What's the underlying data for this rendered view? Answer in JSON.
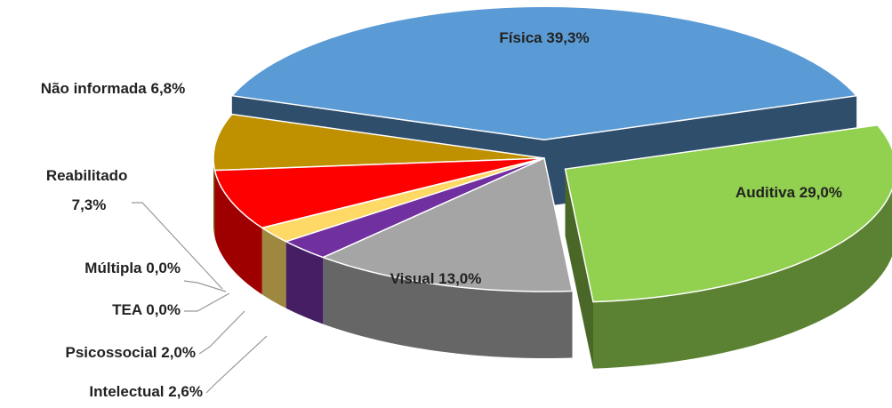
{
  "chart_data": {
    "type": "pie3d",
    "categories": [
      "Física",
      "Auditiva",
      "Visual",
      "Intelectual",
      "Psicossocial",
      "TEA",
      "Múltipla",
      "Reabilitado",
      "Não informada"
    ],
    "values": [
      39.3,
      29.0,
      13.0,
      2.6,
      2.0,
      0.0,
      0.0,
      7.3,
      6.8
    ],
    "value_labels": [
      "39,3%",
      "29,0%",
      "13,0%",
      "2,6%",
      "2,0%",
      "0,0%",
      "0,0%",
      "7,3%",
      "6,8%"
    ],
    "colors": [
      "#5b9bd5",
      "#92d050",
      "#a5a5a5",
      "#7030a0",
      "#ffd966",
      "#f4b183",
      "#4472c4",
      "#ff0000",
      "#bf9000"
    ]
  }
}
